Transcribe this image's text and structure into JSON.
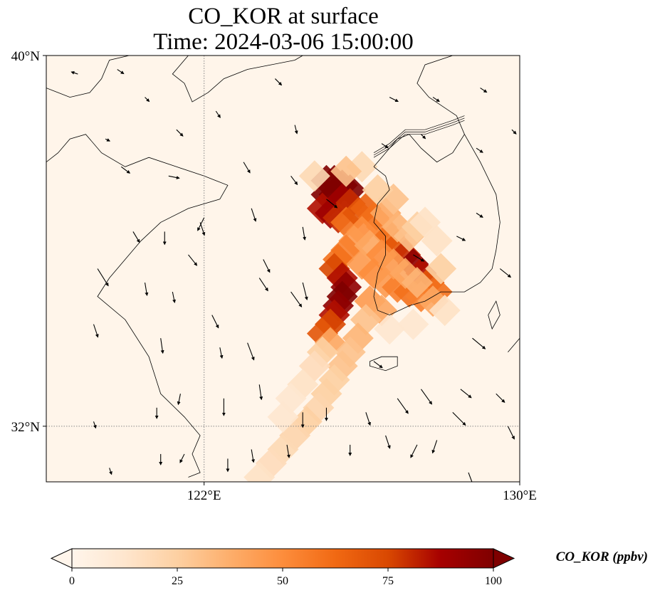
{
  "title": {
    "line1": "CO_KOR at surface",
    "line2": "Time: 2024-03-06 15:00:00"
  },
  "map": {
    "extent": {
      "lon": [
        118,
        130
      ],
      "lat": [
        30.8,
        40
      ]
    },
    "lat_ticks": [
      {
        "value": 40,
        "label": "40°N"
      },
      {
        "value": 32,
        "label": "32°N"
      }
    ],
    "lon_ticks": [
      {
        "value": 122,
        "label": "122°E"
      },
      {
        "value": 130,
        "label": "130°E"
      }
    ],
    "gridlines": {
      "lon": [
        122
      ],
      "lat": [
        32
      ],
      "style": "dotted"
    },
    "colors": {
      "background": "#fff5ea",
      "coast": "#000000",
      "grid": "#888888"
    }
  },
  "colorbar": {
    "label": "CO_KOR (ppbv)",
    "ticks": [
      "0",
      "25",
      "50",
      "75",
      "100"
    ],
    "range": [
      0,
      100
    ],
    "extend": "both",
    "colormap": [
      "#fff5eb",
      "#fee6ce",
      "#fdd0a2",
      "#fdae6b",
      "#fd8d3c",
      "#f16913",
      "#d94801",
      "#a60000",
      "#7f0000"
    ]
  },
  "plume_cells": [
    [
      125.1,
      37.3,
      100
    ],
    [
      125.3,
      37.3,
      100
    ],
    [
      125.5,
      37.2,
      100
    ],
    [
      125.7,
      37.1,
      100
    ],
    [
      125.1,
      37.0,
      100
    ],
    [
      125.3,
      37.0,
      100
    ],
    [
      125.5,
      36.9,
      90
    ],
    [
      125.7,
      36.8,
      80
    ],
    [
      125.0,
      36.7,
      85
    ],
    [
      125.2,
      36.6,
      90
    ],
    [
      125.4,
      36.5,
      80
    ],
    [
      125.6,
      36.4,
      60
    ],
    [
      125.9,
      36.6,
      70
    ],
    [
      126.1,
      36.7,
      65
    ],
    [
      126.3,
      36.5,
      60
    ],
    [
      126.5,
      36.3,
      55
    ],
    [
      126.7,
      36.1,
      60
    ],
    [
      126.9,
      35.9,
      70
    ],
    [
      127.1,
      35.7,
      80
    ],
    [
      127.3,
      35.5,
      95
    ],
    [
      127.5,
      35.3,
      85
    ],
    [
      127.7,
      35.1,
      70
    ],
    [
      127.9,
      34.9,
      60
    ],
    [
      126.0,
      36.2,
      50
    ],
    [
      125.8,
      36.0,
      45
    ],
    [
      125.6,
      35.8,
      55
    ],
    [
      125.4,
      35.6,
      60
    ],
    [
      125.3,
      35.4,
      75
    ],
    [
      125.5,
      35.2,
      85
    ],
    [
      125.6,
      35.0,
      95
    ],
    [
      125.5,
      34.8,
      100
    ],
    [
      125.4,
      34.6,
      95
    ],
    [
      125.3,
      34.4,
      85
    ],
    [
      125.2,
      34.2,
      75
    ],
    [
      125.0,
      34.0,
      70
    ],
    [
      125.2,
      33.8,
      40
    ],
    [
      126.0,
      35.5,
      45
    ],
    [
      126.3,
      35.3,
      50
    ],
    [
      126.6,
      35.1,
      45
    ],
    [
      126.9,
      35.0,
      55
    ],
    [
      127.2,
      34.9,
      60
    ],
    [
      127.5,
      34.8,
      55
    ],
    [
      127.8,
      34.7,
      40
    ],
    [
      126.2,
      34.7,
      45
    ],
    [
      126.5,
      34.5,
      40
    ],
    [
      126.1,
      34.3,
      30
    ],
    [
      125.9,
      33.9,
      35
    ],
    [
      125.7,
      33.6,
      30
    ],
    [
      125.5,
      33.3,
      30
    ],
    [
      125.3,
      33.0,
      25
    ],
    [
      125.1,
      32.7,
      25
    ],
    [
      124.9,
      32.4,
      22
    ],
    [
      124.6,
      32.1,
      25
    ],
    [
      124.3,
      31.8,
      22
    ],
    [
      124.0,
      31.5,
      20
    ],
    [
      123.7,
      31.2,
      18
    ],
    [
      123.4,
      30.9,
      15
    ],
    [
      126.6,
      36.6,
      40
    ],
    [
      126.9,
      36.3,
      35
    ],
    [
      127.2,
      36.1,
      30
    ],
    [
      127.4,
      36.3,
      25
    ],
    [
      126.8,
      36.9,
      30
    ],
    [
      126.4,
      37.1,
      25
    ],
    [
      126.2,
      35.9,
      40
    ],
    [
      126.5,
      35.7,
      50
    ],
    [
      126.8,
      35.5,
      45
    ],
    [
      127.1,
      35.3,
      40
    ],
    [
      127.4,
      35.1,
      35
    ],
    [
      125.0,
      33.6,
      25
    ],
    [
      124.8,
      33.3,
      18
    ],
    [
      124.5,
      32.9,
      15
    ],
    [
      124.2,
      32.6,
      12
    ],
    [
      124.0,
      32.2,
      12
    ],
    [
      126.0,
      37.6,
      20
    ],
    [
      125.6,
      37.5,
      30
    ],
    [
      124.8,
      37.4,
      20
    ],
    [
      127.6,
      36.4,
      15
    ],
    [
      127.9,
      36.0,
      15
    ],
    [
      128.0,
      35.4,
      25
    ],
    [
      128.1,
      34.5,
      15
    ],
    [
      126.7,
      34.1,
      12
    ],
    [
      127.3,
      34.2,
      12
    ]
  ],
  "wind_arrows": [
    [
      118.8,
      39.6,
      -0.3,
      0.1
    ],
    [
      119.5,
      38.2,
      0.2,
      -0.1
    ],
    [
      119.9,
      37.6,
      0.4,
      -0.3
    ],
    [
      121.1,
      37.4,
      0.5,
      -0.1
    ],
    [
      120.2,
      36.2,
      0.3,
      -0.5
    ],
    [
      121.9,
      36.4,
      0.2,
      -0.6
    ],
    [
      121.6,
      35.7,
      0.4,
      -0.5
    ],
    [
      119.3,
      35.4,
      0.5,
      -0.8
    ],
    [
      120.5,
      35.1,
      0.1,
      -0.6
    ],
    [
      121.2,
      34.9,
      0.1,
      -0.5
    ],
    [
      122.2,
      34.4,
      0.3,
      -0.6
    ],
    [
      123.4,
      35.2,
      0.4,
      -0.6
    ],
    [
      124.2,
      34.9,
      0.5,
      -0.7
    ],
    [
      123.1,
      33.8,
      0.3,
      -0.8
    ],
    [
      122.5,
      32.6,
      0.0,
      -0.8
    ],
    [
      122.6,
      31.3,
      0.0,
      -0.6
    ],
    [
      123.2,
      31.5,
      0.1,
      -0.6
    ],
    [
      124.1,
      31.6,
      0.1,
      -0.6
    ],
    [
      124.5,
      32.3,
      0.0,
      -0.7
    ],
    [
      125.1,
      32.4,
      0.0,
      -0.6
    ],
    [
      125.7,
      31.6,
      0.0,
      -0.5
    ],
    [
      123.4,
      32.9,
      0.1,
      -0.7
    ],
    [
      122.4,
      33.7,
      0.1,
      -0.5
    ],
    [
      120.9,
      33.9,
      0.1,
      -0.7
    ],
    [
      119.2,
      34.2,
      0.2,
      -0.6
    ],
    [
      121.0,
      36.2,
      0.0,
      -0.6
    ],
    [
      122.0,
      36.5,
      -0.3,
      -0.6
    ],
    [
      123.5,
      35.6,
      0.3,
      -0.6
    ],
    [
      124.5,
      35.1,
      0.2,
      -0.8
    ],
    [
      126.3,
      33.4,
      0.4,
      -0.3
    ],
    [
      126.1,
      32.3,
      0.2,
      -0.6
    ],
    [
      126.9,
      32.6,
      0.5,
      -0.7
    ],
    [
      127.5,
      32.8,
      0.5,
      -0.7
    ],
    [
      128.3,
      32.3,
      0.6,
      -0.6
    ],
    [
      128.5,
      32.8,
      0.5,
      -0.4
    ],
    [
      129.4,
      32.7,
      0.4,
      -0.4
    ],
    [
      129.7,
      32.0,
      0.3,
      -0.6
    ],
    [
      127.9,
      31.7,
      -0.2,
      -0.6
    ],
    [
      127.4,
      31.6,
      -0.3,
      -0.6
    ],
    [
      126.6,
      31.8,
      0.2,
      -0.6
    ],
    [
      128.8,
      33.9,
      0.6,
      -0.5
    ],
    [
      129.5,
      35.4,
      0.5,
      -0.4
    ],
    [
      128.9,
      36.6,
      0.3,
      -0.2
    ],
    [
      128.4,
      36.1,
      0.4,
      -0.2
    ],
    [
      127.3,
      35.7,
      0.5,
      -0.3
    ],
    [
      125.1,
      36.9,
      0.5,
      -0.4
    ],
    [
      124.2,
      37.4,
      0.3,
      -0.4
    ],
    [
      123.0,
      37.7,
      0.3,
      -0.5
    ],
    [
      121.3,
      38.4,
      0.3,
      -0.3
    ],
    [
      122.3,
      38.8,
      0.2,
      -0.3
    ],
    [
      124.3,
      38.5,
      0.1,
      -0.4
    ],
    [
      126.5,
      38.1,
      0.3,
      -0.2
    ],
    [
      127.5,
      38.3,
      0.2,
      -0.2
    ],
    [
      128.9,
      38.0,
      0.3,
      -0.2
    ],
    [
      126.7,
      39.1,
      0.4,
      -0.2
    ],
    [
      127.8,
      39.1,
      0.3,
      -0.2
    ],
    [
      129.0,
      39.3,
      0.3,
      -0.2
    ],
    [
      129.8,
      38.4,
      0.2,
      -0.2
    ],
    [
      123.8,
      39.5,
      0.3,
      -0.3
    ],
    [
      119.8,
      39.7,
      0.3,
      -0.2
    ],
    [
      120.5,
      39.1,
      0.2,
      -0.2
    ],
    [
      124.5,
      36.3,
      0.1,
      -0.6
    ],
    [
      123.2,
      36.7,
      0.2,
      -0.6
    ],
    [
      120.8,
      32.4,
      0.0,
      -0.5
    ],
    [
      121.5,
      31.4,
      -0.2,
      -0.4
    ],
    [
      119.2,
      32.1,
      0.1,
      -0.3
    ],
    [
      119.6,
      31.1,
      0.1,
      -0.3
    ],
    [
      120.9,
      31.4,
      0.0,
      -0.5
    ],
    [
      121.4,
      32.7,
      -0.1,
      -0.5
    ],
    [
      128.7,
      31.0,
      0.3,
      -0.8
    ]
  ],
  "coastlines": [
    [
      [
        118,
        39.3
      ],
      [
        118.6,
        39.1
      ],
      [
        119.1,
        39.2
      ],
      [
        119.4,
        39.5
      ],
      [
        119.6,
        39.9
      ],
      [
        120.1,
        40.0
      ]
    ],
    [
      [
        121.6,
        40.0
      ],
      [
        121.4,
        39.8
      ],
      [
        121.2,
        39.6
      ],
      [
        121.5,
        39.4
      ],
      [
        121.7,
        39.0
      ],
      [
        122.1,
        39.2
      ],
      [
        122.5,
        39.5
      ],
      [
        123.1,
        39.7
      ],
      [
        123.7,
        39.8
      ],
      [
        124.3,
        39.9
      ],
      [
        124.5,
        40.0
      ]
    ],
    [
      [
        118,
        37.7
      ],
      [
        118.3,
        37.9
      ],
      [
        118.6,
        38.2
      ],
      [
        119.0,
        38.3
      ],
      [
        119.4,
        37.9
      ],
      [
        120.0,
        37.6
      ],
      [
        120.6,
        37.8
      ],
      [
        121.3,
        37.6
      ],
      [
        122.0,
        37.4
      ],
      [
        122.6,
        37.2
      ],
      [
        122.4,
        36.9
      ],
      [
        121.6,
        36.7
      ],
      [
        120.9,
        36.4
      ],
      [
        120.4,
        36.0
      ],
      [
        120.0,
        35.6
      ],
      [
        119.6,
        35.2
      ],
      [
        119.3,
        34.8
      ],
      [
        120.0,
        34.3
      ],
      [
        120.6,
        33.5
      ],
      [
        120.9,
        32.7
      ],
      [
        121.5,
        32.2
      ],
      [
        121.9,
        31.8
      ],
      [
        121.7,
        31.4
      ],
      [
        121.9,
        31.0
      ],
      [
        121.6,
        30.9
      ]
    ],
    [
      [
        126.3,
        37.6
      ],
      [
        126.6,
        37.9
      ],
      [
        126.9,
        38.2
      ],
      [
        127.2,
        38.3
      ],
      [
        127.5,
        38.0
      ],
      [
        127.9,
        37.7
      ],
      [
        128.3,
        37.9
      ],
      [
        128.6,
        38.3
      ],
      [
        128.4,
        38.7
      ],
      [
        127.7,
        39.1
      ],
      [
        127.4,
        39.4
      ],
      [
        127.6,
        39.8
      ],
      [
        128.3,
        40.0
      ]
    ],
    [
      [
        128.6,
        38.3
      ],
      [
        129.0,
        37.7
      ],
      [
        129.4,
        37.0
      ],
      [
        129.5,
        36.4
      ],
      [
        129.4,
        35.8
      ],
      [
        129.3,
        35.4
      ],
      [
        129.0,
        35.1
      ],
      [
        128.6,
        34.9
      ],
      [
        128.0,
        34.9
      ],
      [
        127.6,
        34.7
      ],
      [
        127.2,
        34.6
      ],
      [
        126.7,
        34.4
      ],
      [
        126.4,
        34.5
      ],
      [
        126.3,
        34.8
      ],
      [
        126.4,
        35.3
      ],
      [
        126.6,
        35.7
      ],
      [
        126.6,
        36.1
      ],
      [
        126.3,
        36.4
      ],
      [
        126.4,
        36.8
      ],
      [
        126.7,
        37.1
      ],
      [
        126.6,
        37.4
      ],
      [
        126.3,
        37.6
      ]
    ],
    [
      [
        126.2,
        33.4
      ],
      [
        126.5,
        33.5
      ],
      [
        126.9,
        33.5
      ],
      [
        126.9,
        33.3
      ],
      [
        126.6,
        33.2
      ],
      [
        126.2,
        33.3
      ],
      [
        126.2,
        33.4
      ]
    ],
    [
      [
        129.2,
        34.4
      ],
      [
        129.4,
        34.7
      ],
      [
        129.5,
        34.4
      ],
      [
        129.3,
        34.1
      ],
      [
        129.2,
        34.4
      ]
    ],
    [
      [
        129.7,
        33.6
      ],
      [
        130.0,
        33.9
      ],
      [
        130.0,
        33.4
      ]
    ]
  ],
  "dmz_line": [
    [
      126.3,
      37.8
    ],
    [
      126.7,
      38.0
    ],
    [
      127.1,
      38.3
    ],
    [
      127.6,
      38.3
    ],
    [
      128.3,
      38.5
    ],
    [
      128.6,
      38.6
    ]
  ]
}
